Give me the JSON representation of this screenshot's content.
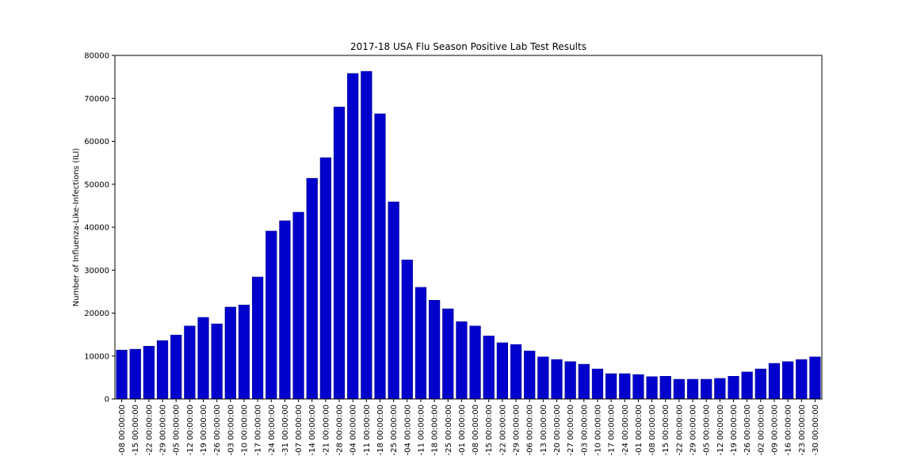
{
  "chart_data": {
    "type": "bar",
    "title": "2017-18 USA Flu Season Positive Lab Test Results",
    "y_label": "Number of Influenza-Like-Infections (ILI)",
    "categories": [
      "-08 00:00:00",
      "-15 00:00:00",
      "-22 00:00:00",
      "-29 00:00:00",
      "-05 00:00:00",
      "-12 00:00:00",
      "-19 00:00:00",
      "-26 00:00:00",
      "-03 00:00:00",
      "-10 00:00:00",
      "-17 00:00:00",
      "-24 00:00:00",
      "-31 00:00:00",
      "-07 00:00:00",
      "-14 00:00:00",
      "-21 00:00:00",
      "-28 00:00:00",
      "-04 00:00:00",
      "-11 00:00:00",
      "-18 00:00:00",
      "-25 00:00:00",
      "-04 00:00:00",
      "-11 00:00:00",
      "-18 00:00:00",
      "-25 00:00:00",
      "-01 00:00:00",
      "-08 00:00:00",
      "-15 00:00:00",
      "-22 00:00:00",
      "-29 00:00:00",
      "-06 00:00:00",
      "-13 00:00:00",
      "-20 00:00:00",
      "-27 00:00:00",
      "-03 00:00:00",
      "-10 00:00:00",
      "-17 00:00:00",
      "-24 00:00:00",
      "-01 00:00:00",
      "-08 00:00:00",
      "-15 00:00:00",
      "-22 00:00:00",
      "-29 00:00:00",
      "-05 00:00:00",
      "-12 00:00:00",
      "-19 00:00:00",
      "-26 00:00:00",
      "-02 00:00:00",
      "-09 00:00:00",
      "-16 00:00:00",
      "-23 00:00:00",
      "-30 00:00:00"
    ],
    "values": [
      11400,
      11600,
      12300,
      13600,
      14900,
      17000,
      19000,
      17500,
      21400,
      21900,
      28400,
      39100,
      41500,
      43500,
      51400,
      56200,
      68000,
      75800,
      76300,
      66400,
      45900,
      32400,
      26000,
      23000,
      21000,
      18000,
      17000,
      14700,
      13100,
      12700,
      11200,
      9800,
      9200,
      8700,
      8100,
      7000,
      5900,
      5900,
      5700,
      5200,
      5300,
      4600,
      4600,
      4600,
      4800,
      5300,
      6300,
      7000,
      8300,
      8700,
      9200,
      9800
    ],
    "color": "#0000cd",
    "ylim": [
      0,
      80000
    ],
    "yticks": [
      0,
      10000,
      20000,
      30000,
      40000,
      50000,
      60000,
      70000,
      80000
    ],
    "grid": false
  }
}
